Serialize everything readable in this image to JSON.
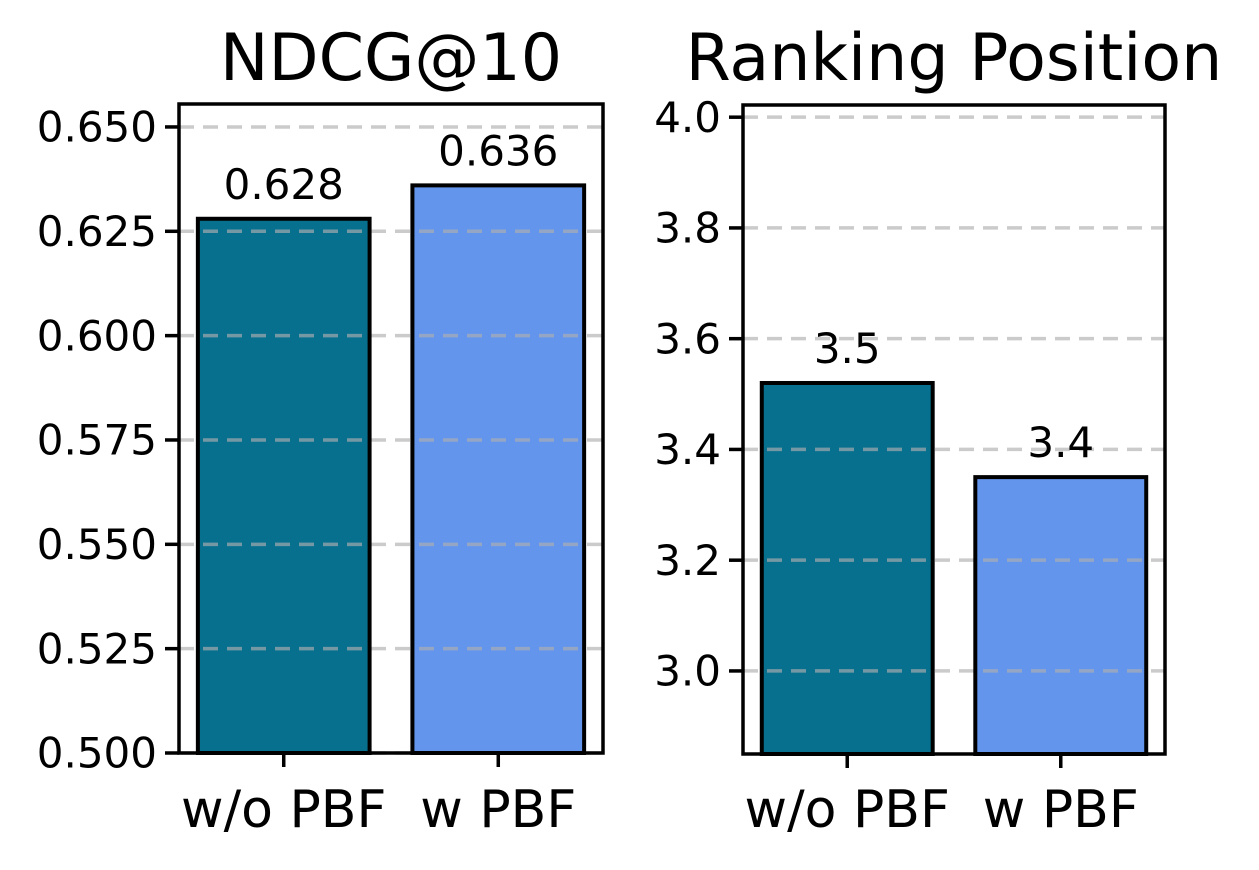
{
  "figure": {
    "background": "#ffffff",
    "description": "Two-panel bar chart ablation comparison with and without PBF"
  },
  "chart_data": [
    {
      "type": "bar",
      "title": "NDCG@10",
      "categories": [
        "w/o PBF",
        "w PBF"
      ],
      "values": [
        0.628,
        0.636
      ],
      "bar_labels": [
        "0.628",
        "0.636"
      ],
      "series_colors": [
        "#08708f",
        "#6495ed"
      ],
      "bar_edge_color": "#000000",
      "yticks": [
        0.5,
        0.525,
        0.55,
        0.575,
        0.6,
        0.625,
        0.65
      ],
      "ytick_labels": [
        "0.500",
        "0.525",
        "0.550",
        "0.575",
        "0.600",
        "0.625",
        "0.650"
      ],
      "ylim": [
        0.5,
        0.6555
      ],
      "xlabel": "",
      "ylabel": "",
      "grid": {
        "axis": "y",
        "style": "dashed",
        "color": "#b0b0b0"
      },
      "legend": "none"
    },
    {
      "type": "bar",
      "title": "Ranking Position",
      "categories": [
        "w/o PBF",
        "w PBF"
      ],
      "values": [
        3.52,
        3.35
      ],
      "bar_labels": [
        "3.5",
        "3.4"
      ],
      "series_colors": [
        "#08708f",
        "#6495ed"
      ],
      "bar_edge_color": "#000000",
      "yticks": [
        3.0,
        3.2,
        3.4,
        3.6,
        3.8,
        4.0
      ],
      "ytick_labels": [
        "3.0",
        "3.2",
        "3.4",
        "3.6",
        "3.8",
        "4.0"
      ],
      "ylim": [
        2.85,
        4.022
      ],
      "xlabel": "",
      "ylabel": "",
      "grid": {
        "axis": "y",
        "style": "dashed",
        "color": "#b0b0b0"
      },
      "legend": "none"
    }
  ]
}
